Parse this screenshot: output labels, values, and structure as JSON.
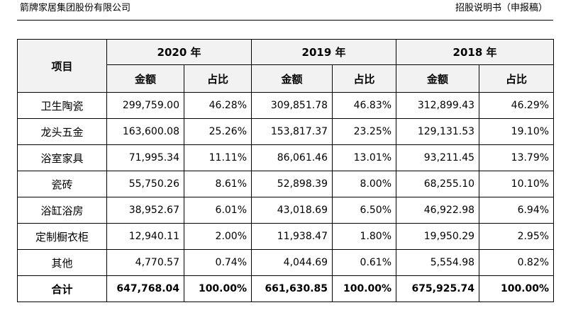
{
  "header": {
    "company": "箭牌家居集团股份有限公司",
    "doc_title": "招股说明书（申报稿）"
  },
  "table": {
    "item_header": "项目",
    "years": [
      "2020 年",
      "2019 年",
      "2018 年"
    ],
    "amount_label": "金额",
    "ratio_label": "占比",
    "rows": [
      {
        "name": "卫生陶瓷",
        "cells": [
          "299,759.00",
          "46.28%",
          "309,851.78",
          "46.83%",
          "312,899.43",
          "46.29%"
        ]
      },
      {
        "name": "龙头五金",
        "cells": [
          "163,600.08",
          "25.26%",
          "153,817.37",
          "23.25%",
          "129,131.53",
          "19.10%"
        ]
      },
      {
        "name": "浴室家具",
        "cells": [
          "71,995.34",
          "11.11%",
          "86,061.46",
          "13.01%",
          "93,211.45",
          "13.79%"
        ]
      },
      {
        "name": "瓷砖",
        "cells": [
          "55,750.26",
          "8.61%",
          "52,898.39",
          "8.00%",
          "68,255.10",
          "10.10%"
        ]
      },
      {
        "name": "浴缸浴房",
        "cells": [
          "38,952.67",
          "6.01%",
          "43,018.69",
          "6.50%",
          "46,922.98",
          "6.94%"
        ]
      },
      {
        "name": "定制橱衣柜",
        "cells": [
          "12,940.11",
          "2.00%",
          "11,938.47",
          "1.80%",
          "19,950.29",
          "2.95%"
        ]
      },
      {
        "name": "其他",
        "cells": [
          "4,770.57",
          "0.74%",
          "4,044.69",
          "0.61%",
          "5,554.98",
          "0.82%"
        ]
      }
    ],
    "total": {
      "name": "合计",
      "cells": [
        "647,768.04",
        "100.00%",
        "661,630.85",
        "100.00%",
        "675,925.74",
        "100.00%"
      ]
    }
  }
}
